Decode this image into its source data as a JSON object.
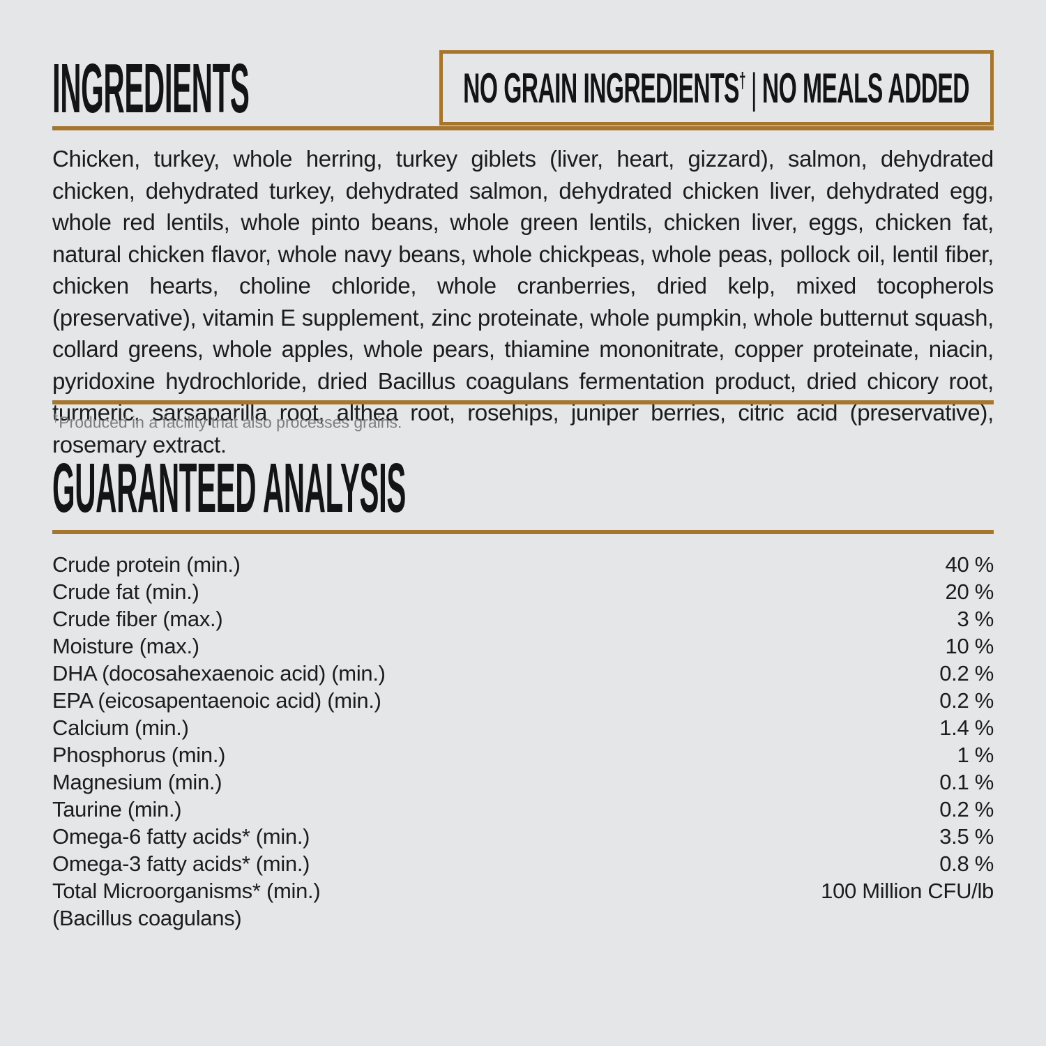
{
  "theme": {
    "background": "#e5e6e8",
    "accent_brown": "#a6752e",
    "text_black": "#1b1c1e",
    "footnote_gray": "#7b7e81"
  },
  "ingredients_section": {
    "title": "INGREDIENTS",
    "badge": {
      "left": "NO GRAIN INGREDIENTS",
      "dagger": "†",
      "separator": "|",
      "right": "NO MEALS ADDED"
    },
    "body": "Chicken, turkey, whole herring, turkey giblets (liver, heart, gizzard), salmon, dehydrated chicken, dehydrated turkey, dehydrated salmon, dehydrated chicken liver, dehydrated egg, whole red lentils, whole pinto beans, whole green lentils, chicken liver, eggs, chicken fat, natural chicken flavor, whole navy beans, whole chickpeas, whole peas, pollock oil, lentil fiber, chicken hearts, choline chloride, whole cranberries, dried kelp, mixed tocopherols (preservative), vitamin E supplement, zinc proteinate, whole pumpkin, whole butternut squash, collard greens, whole apples, whole pears, thiamine mononitrate, copper proteinate, niacin, pyridoxine hydrochloride, dried Bacillus coagulans fermentation product, dried chicory root, turmeric, sarsaparilla root, althea root, rosehips, juniper berries, citric acid (preservative), rosemary extract.",
    "footnote": {
      "dagger": "†",
      "text": "Produced in a facility that also processes grains."
    }
  },
  "analysis_section": {
    "title": "GUARANTEED ANALYSIS",
    "rows": [
      {
        "label": "Crude protein (min.)",
        "value": "40 %"
      },
      {
        "label": "Crude fat (min.)",
        "value": "20 %"
      },
      {
        "label": "Crude fiber (max.)",
        "value": "3 %"
      },
      {
        "label": "Moisture (max.)",
        "value": "10 %"
      },
      {
        "label": "DHA (docosahexaenoic acid) (min.)",
        "value": "0.2 %"
      },
      {
        "label": "EPA (eicosapentaenoic acid) (min.)",
        "value": "0.2 %"
      },
      {
        "label": "Calcium (min.)",
        "value": "1.4 %"
      },
      {
        "label": "Phosphorus (min.)",
        "value": "1 %"
      },
      {
        "label": "Magnesium (min.)",
        "value": "0.1 %"
      },
      {
        "label": "Taurine (min.)",
        "value": "0.2 %"
      },
      {
        "label": "Omega-6 fatty acids* (min.)",
        "value": "3.5 %"
      },
      {
        "label": "Omega-3 fatty acids* (min.)",
        "value": "0.8 %"
      },
      {
        "label": "Total Microorganisms* (min.)",
        "value": "100 Million CFU/lb"
      },
      {
        "label": "(Bacillus coagulans)",
        "value": ""
      }
    ]
  }
}
